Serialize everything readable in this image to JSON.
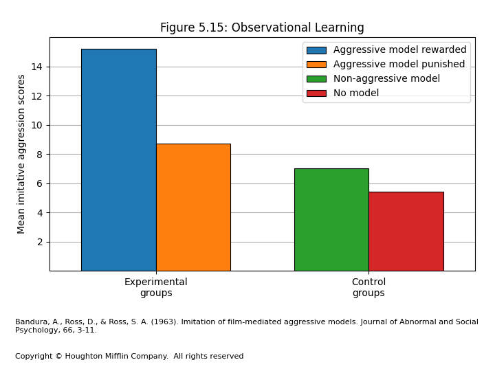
{
  "chart_data": {
    "type": "bar",
    "title": "Figure 5.15: Observational Learning",
    "y_label": "Mean imitative aggression scores",
    "categories": [
      "Experimental\ngroups",
      "Control\ngroups"
    ],
    "series": [
      {
        "name": "Aggressive model rewarded",
        "values": [
          15.2,
          null
        ]
      },
      {
        "name": "Aggressive model punished",
        "values": [
          8.7,
          null
        ]
      },
      {
        "name": "Non-aggressive model",
        "values": [
          null,
          7.0
        ]
      },
      {
        "name": "No model",
        "values": [
          null,
          5.4
        ]
      }
    ],
    "ylim": [
      0,
      16
    ],
    "yticks": [
      2,
      4,
      6,
      8,
      10,
      12,
      14
    ],
    "grid": true,
    "legend": "upper right",
    "annotations": [
      "Bandura, A., Ross, D., & Ross, S. A. (1963). Imitation of film-mediated aggressive models. Journal of Abnormal and Social Psychology, 66, 3-11.",
      "Copyright © Houghton Mifflin Company.  All rights reserved"
    ]
  }
}
